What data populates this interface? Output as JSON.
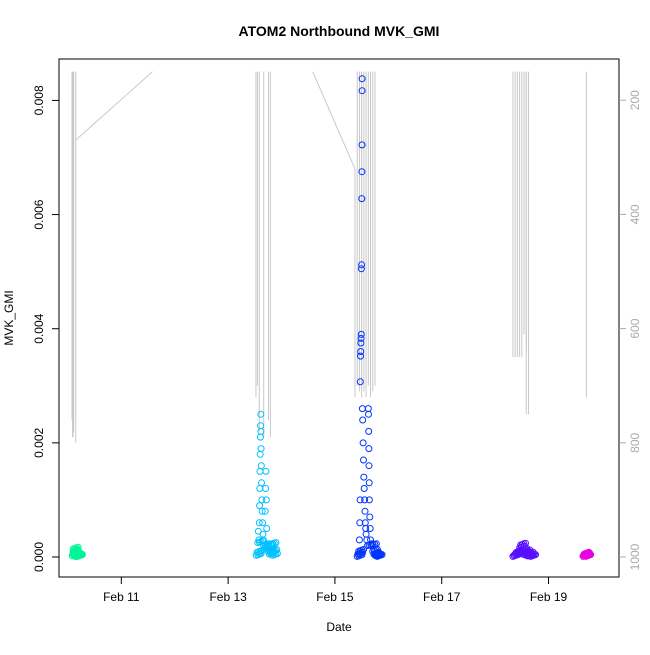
{
  "chart_data": {
    "type": "scatter",
    "title": "ATOM2 Northbound MVK_GMI",
    "xlabel": "Date",
    "ylabel": "MVK_GMI",
    "x_unit": "date (Feb)",
    "xlim": [
      "Feb 10 00:00",
      "Feb 20 00:00"
    ],
    "x_ticks": [
      {
        "day": 11,
        "label": "Feb 11"
      },
      {
        "day": 13,
        "label": "Feb 13"
      },
      {
        "day": 15,
        "label": "Feb 15"
      },
      {
        "day": 17,
        "label": "Feb 17"
      },
      {
        "day": 19,
        "label": "Feb 19"
      }
    ],
    "ylim": [
      -0.0002,
      0.0087
    ],
    "y_ticks": [
      "0.000",
      "0.002",
      "0.004",
      "0.006",
      "0.008"
    ],
    "y2_label": "",
    "y2_reversed": true,
    "y2lim": [
      1050,
      150
    ],
    "y2_ticks": [
      "200",
      "400",
      "600",
      "800",
      "1000"
    ],
    "grid": false,
    "legend": "none",
    "marker": "open circle",
    "series": [
      {
        "color": "#00f59a",
        "points": [
          [
            "Feb 10 02:00",
            2e-05
          ],
          [
            "Feb 10 02:10",
            5e-05
          ],
          [
            "Feb 10 02:20",
            0.0001
          ],
          [
            "Feb 10 02:25",
            0.00014
          ],
          [
            "Feb 10 02:30",
            8e-05
          ],
          [
            "Feb 10 02:40",
            3e-05
          ],
          [
            "Feb 10 02:50",
            6e-05
          ],
          [
            "Feb 10 03:00",
            2e-05
          ],
          [
            "Feb 10 03:10",
            4e-05
          ],
          [
            "Feb 10 03:20",
            1e-05
          ],
          [
            "Feb 10 03:30",
            3e-05
          ],
          [
            "Feb 10 03:40",
            1e-05
          ],
          [
            "Feb 10 03:50",
            2e-05
          ],
          [
            "Feb 10 04:00",
            1e-05
          ],
          [
            "Feb 10 04:10",
            2e-05
          ],
          [
            "Feb 10 04:20",
            1e-05
          ]
        ]
      },
      {
        "color": "#00c0ff",
        "points": [
          [
            "Feb 13 12:40",
            3e-05
          ],
          [
            "Feb 13 13:00",
            8e-05
          ],
          [
            "Feb 13 13:20",
            0.00025
          ],
          [
            "Feb 13 13:35",
            0.00045
          ],
          [
            "Feb 13 13:50",
            0.0003
          ],
          [
            "Feb 13 14:00",
            0.0006
          ],
          [
            "Feb 13 14:10",
            0.0009
          ],
          [
            "Feb 13 14:15",
            0.0012
          ],
          [
            "Feb 13 14:20",
            0.0015
          ],
          [
            "Feb 13 14:25",
            0.0018
          ],
          [
            "Feb 13 14:30",
            0.0021
          ],
          [
            "Feb 13 14:35",
            0.0023
          ],
          [
            "Feb 13 14:40",
            0.0025
          ],
          [
            "Feb 13 14:45",
            0.0022
          ],
          [
            "Feb 13 14:50",
            0.0019
          ],
          [
            "Feb 13 14:55",
            0.0016
          ],
          [
            "Feb 13 15:00",
            0.0013
          ],
          [
            "Feb 13 15:10",
            0.001
          ],
          [
            "Feb 13 15:20",
            0.0008
          ],
          [
            "Feb 13 15:30",
            0.0006
          ],
          [
            "Feb 13 15:40",
            0.0004
          ],
          [
            "Feb 13 15:50",
            0.0003
          ],
          [
            "Feb 13 16:00",
            0.0002
          ],
          [
            "Feb 13 16:20",
            0.00015
          ],
          [
            "Feb 13 16:40",
            0.0008
          ],
          [
            "Feb 13 16:50",
            0.0012
          ],
          [
            "Feb 13 17:00",
            0.0015
          ],
          [
            "Feb 13 17:10",
            0.001
          ],
          [
            "Feb 13 17:20",
            0.0005
          ],
          [
            "Feb 13 17:40",
            0.0002
          ],
          [
            "Feb 13 18:00",
            0.0001
          ],
          [
            "Feb 13 18:30",
            5e-05
          ],
          [
            "Feb 13 19:00",
            8e-05
          ],
          [
            "Feb 13 19:20",
            0.00022
          ],
          [
            "Feb 13 19:40",
            0.0001
          ],
          [
            "Feb 13 20:00",
            3e-05
          ]
        ]
      },
      {
        "color": "#0033ff",
        "points": [
          [
            "Feb 15 10:00",
            1e-05
          ],
          [
            "Feb 15 10:20",
            5e-05
          ],
          [
            "Feb 15 10:40",
            0.0001
          ],
          [
            "Feb 15 11:00",
            0.0003
          ],
          [
            "Feb 15 11:10",
            0.0006
          ],
          [
            "Feb 15 11:20",
            0.001
          ],
          [
            "Feb 15 11:25",
            0.00307
          ],
          [
            "Feb 15 11:30",
            0.00352
          ],
          [
            "Feb 15 11:35",
            0.0036
          ],
          [
            "Feb 15 11:40",
            0.00375
          ],
          [
            "Feb 15 11:45",
            0.00383
          ],
          [
            "Feb 15 11:50",
            0.0039
          ],
          [
            "Feb 15 11:55",
            0.00505
          ],
          [
            "Feb 15 12:00",
            0.00512
          ],
          [
            "Feb 15 12:05",
            0.00628
          ],
          [
            "Feb 15 12:08",
            0.00675
          ],
          [
            "Feb 15 12:10",
            0.00722
          ],
          [
            "Feb 15 12:12",
            0.00817
          ],
          [
            "Feb 15 12:14",
            0.00838
          ],
          [
            "Feb 15 12:20",
            0.0026
          ],
          [
            "Feb 15 12:30",
            0.0024
          ],
          [
            "Feb 15 12:40",
            0.002
          ],
          [
            "Feb 15 12:50",
            0.0017
          ],
          [
            "Feb 15 13:00",
            0.0014
          ],
          [
            "Feb 15 13:10",
            0.0012
          ],
          [
            "Feb 15 13:20",
            0.001
          ],
          [
            "Feb 15 13:30",
            0.0008
          ],
          [
            "Feb 15 13:40",
            0.0006
          ],
          [
            "Feb 15 13:50",
            0.0005
          ],
          [
            "Feb 15 14:00",
            0.0004
          ],
          [
            "Feb 15 14:20",
            0.0003
          ],
          [
            "Feb 15 14:40",
            0.0002
          ],
          [
            "Feb 15 15:00",
            0.0026
          ],
          [
            "Feb 15 15:05",
            0.0025
          ],
          [
            "Feb 15 15:10",
            0.0022
          ],
          [
            "Feb 15 15:15",
            0.0019
          ],
          [
            "Feb 15 15:20",
            0.0016
          ],
          [
            "Feb 15 15:25",
            0.0013
          ],
          [
            "Feb 15 15:30",
            0.001
          ],
          [
            "Feb 15 15:40",
            0.0007
          ],
          [
            "Feb 15 15:50",
            0.0005
          ],
          [
            "Feb 15 16:00",
            0.0003
          ],
          [
            "Feb 15 16:30",
            0.0002
          ],
          [
            "Feb 15 17:00",
            0.0001
          ],
          [
            "Feb 15 17:30",
            5e-05
          ],
          [
            "Feb 15 18:00",
            3e-05
          ],
          [
            "Feb 15 18:30",
            2e-05
          ],
          [
            "Feb 15 19:00",
            1e-05
          ]
        ]
      },
      {
        "color": "#5a10ff",
        "points": [
          [
            "Feb 18 08:00",
            1e-05
          ],
          [
            "Feb 18 08:30",
            3e-05
          ],
          [
            "Feb 18 09:00",
            5e-05
          ],
          [
            "Feb 18 09:30",
            8e-05
          ],
          [
            "Feb 18 10:00",
            4e-05
          ],
          [
            "Feb 18 10:30",
            0.0001
          ],
          [
            "Feb 18 11:00",
            0.00016
          ],
          [
            "Feb 18 11:30",
            0.00021
          ],
          [
            "Feb 18 12:00",
            0.00012
          ],
          [
            "Feb 18 12:30",
            7e-05
          ],
          [
            "Feb 18 13:00",
            4e-05
          ],
          [
            "Feb 18 13:30",
            9e-05
          ],
          [
            "Feb 18 14:00",
            3e-05
          ],
          [
            "Feb 18 14:30",
            2e-05
          ],
          [
            "Feb 18 15:00",
            5e-05
          ],
          [
            "Feb 18 15:30",
            2e-05
          ],
          [
            "Feb 18 16:00",
            1e-05
          ]
        ]
      },
      {
        "color": "#e800e0",
        "points": [
          [
            "Feb 19 15:30",
            1e-05
          ],
          [
            "Feb 19 15:45",
            3e-05
          ],
          [
            "Feb 19 16:00",
            5e-05
          ],
          [
            "Feb 19 16:15",
            4e-05
          ],
          [
            "Feb 19 16:30",
            2e-05
          ],
          [
            "Feb 19 16:45",
            1e-05
          ]
        ]
      }
    ],
    "secondary_trace": {
      "color": "#c8c8c8",
      "segments": [
        [
          [
            "Feb 10 01:50",
            150
          ],
          [
            "Feb 10 01:50",
            760
          ]
        ],
        [
          [
            "Feb 10 02:05",
            150
          ],
          [
            "Feb 10 02:05",
            790
          ]
        ],
        [
          [
            "Feb 10 02:20",
            150
          ],
          [
            "Feb 10 02:20",
            790
          ]
        ],
        [
          [
            "Feb 10 02:35",
            150
          ],
          [
            "Feb 10 02:35",
            780
          ]
        ],
        [
          [
            "Feb 10 03:30",
            150
          ],
          [
            "Feb 10 03:30",
            800
          ]
        ],
        [
          [
            "Feb 10 03:30",
            270
          ],
          [
            "Feb 11 14:00",
            150
          ]
        ],
        [
          [
            "Feb 13 12:30",
            150
          ],
          [
            "Feb 13 12:30",
            720
          ]
        ],
        [
          [
            "Feb 13 13:10",
            150
          ],
          [
            "Feb 13 13:10",
            700
          ]
        ],
        [
          [
            "Feb 13 14:00",
            150
          ],
          [
            "Feb 13 14:00",
            780
          ]
        ],
        [
          [
            "Feb 13 16:00",
            150
          ],
          [
            "Feb 13 16:00",
            790
          ]
        ],
        [
          [
            "Feb 13 18:10",
            150
          ],
          [
            "Feb 13 18:10",
            760
          ]
        ],
        [
          [
            "Feb 13 19:00",
            150
          ],
          [
            "Feb 13 19:00",
            790
          ]
        ],
        [
          [
            "Feb 14 14:00",
            150
          ],
          [
            "Feb 15 09:00",
            320
          ]
        ],
        [
          [
            "Feb 15 09:00",
            320
          ],
          [
            "Feb 15 09:00",
            720
          ]
        ],
        [
          [
            "Feb 15 10:00",
            150
          ],
          [
            "Feb 15 10:00",
            700
          ]
        ],
        [
          [
            "Feb 15 11:00",
            150
          ],
          [
            "Feb 15 11:00",
            710
          ]
        ],
        [
          [
            "Feb 15 12:00",
            150
          ],
          [
            "Feb 15 12:00",
            720
          ]
        ],
        [
          [
            "Feb 15 13:00",
            150
          ],
          [
            "Feb 15 13:00",
            710
          ]
        ],
        [
          [
            "Feb 15 14:00",
            150
          ],
          [
            "Feb 15 14:00",
            720
          ]
        ],
        [
          [
            "Feb 15 15:00",
            150
          ],
          [
            "Feb 15 15:00",
            700
          ]
        ],
        [
          [
            "Feb 15 16:00",
            150
          ],
          [
            "Feb 15 16:00",
            720
          ]
        ],
        [
          [
            "Feb 15 17:00",
            150
          ],
          [
            "Feb 15 17:00",
            710
          ]
        ],
        [
          [
            "Feb 15 18:00",
            150
          ],
          [
            "Feb 15 18:00",
            700
          ]
        ],
        [
          [
            "Feb 18 08:00",
            150
          ],
          [
            "Feb 18 08:00",
            650
          ]
        ],
        [
          [
            "Feb 18 09:00",
            150
          ],
          [
            "Feb 18 09:00",
            650
          ]
        ],
        [
          [
            "Feb 18 10:00",
            150
          ],
          [
            "Feb 18 10:00",
            650
          ]
        ],
        [
          [
            "Feb 18 11:00",
            150
          ],
          [
            "Feb 18 11:00",
            650
          ]
        ],
        [
          [
            "Feb 18 12:00",
            150
          ],
          [
            "Feb 18 12:00",
            650
          ]
        ],
        [
          [
            "Feb 18 13:00",
            150
          ],
          [
            "Feb 18 13:00",
            610
          ]
        ],
        [
          [
            "Feb 18 14:00",
            150
          ],
          [
            "Feb 18 14:00",
            750
          ]
        ],
        [
          [
            "Feb 18 14:00",
            150
          ],
          [
            "Feb 18 14:00",
            640
          ]
        ],
        [
          [
            "Feb 18 15:00",
            150
          ],
          [
            "Feb 18 15:00",
            750
          ]
        ],
        [
          [
            "Feb 19 17:00",
            150
          ],
          [
            "Feb 19 17:00",
            720
          ]
        ]
      ]
    }
  }
}
